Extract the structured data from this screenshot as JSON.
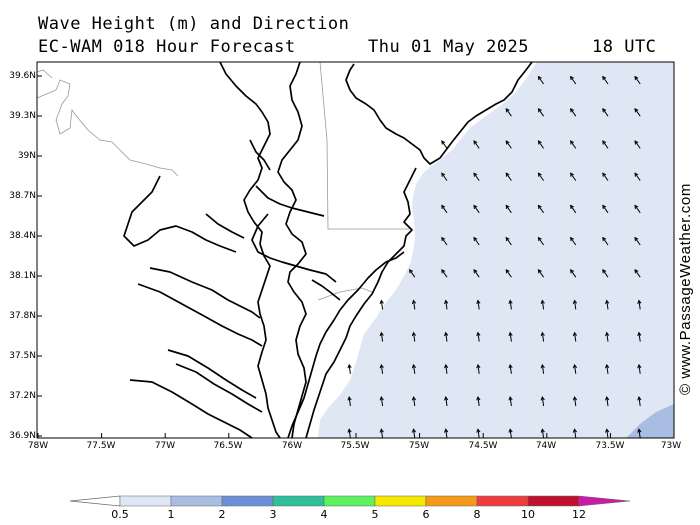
{
  "header": {
    "title_line1": "Wave Height (m) and Direction",
    "title_line2": "EC-WAM 018 Hour Forecast",
    "valid_date": "Thu 01 May 2025",
    "valid_time": "18 UTC"
  },
  "credit": "© www.PassageWeather.com",
  "map": {
    "lat_labels": [
      "39.6N",
      "39.3N",
      "39N",
      "38.7N",
      "38.4N",
      "38.1N",
      "37.8N",
      "37.5N",
      "37.2N",
      "36.9N"
    ],
    "lon_labels": [
      "78W",
      "77.5W",
      "77W",
      "76.5W",
      "76W",
      "75.5W",
      "75W",
      "74.5W",
      "74W",
      "73.5W",
      "73W"
    ],
    "wave_direction": "arrows point toward north-northwest (waves from south-southeast)",
    "colors": {
      "wave_0_5_1": "#dfe6f4",
      "wave_1_2": "#a9bde2",
      "land": "#ffffff",
      "coastline": "#000000",
      "borders": "#aaaaaa"
    }
  },
  "colorbar": {
    "labels": [
      "0.5",
      "1",
      "2",
      "3",
      "4",
      "5",
      "6",
      "8",
      "10",
      "12"
    ],
    "colors": [
      "#ffffff",
      "#dfe6f4",
      "#a9bde2",
      "#6d8fd6",
      "#2fbf9a",
      "#5ff05f",
      "#f5e800",
      "#f49a1a",
      "#ee3d3d",
      "#c01030",
      "#cc1aa8"
    ]
  }
}
